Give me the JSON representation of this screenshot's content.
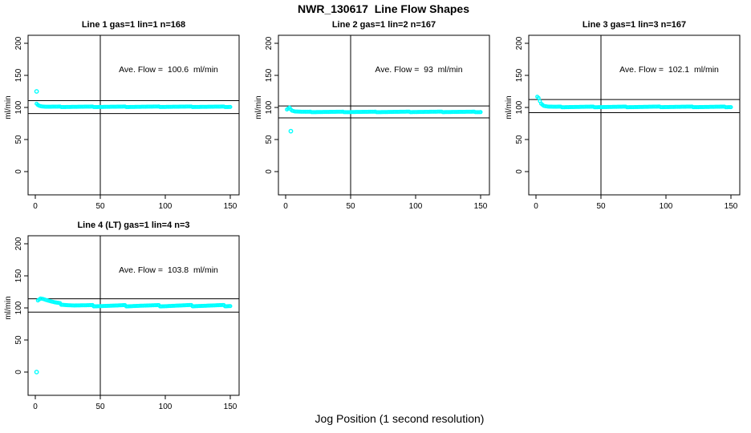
{
  "title": "NWR_130617  Line Flow Shapes",
  "xlabel": "Jog Position (1 second resolution)",
  "colors": {
    "data_marker": "#00FFFF",
    "axis": "#000000",
    "background": "#FFFFFF"
  },
  "chart_data": [
    {
      "type": "scatter",
      "title": "Line 1 gas=1 lin=1 n=168",
      "annotation": "Ave. Flow =  100.6  ml/min",
      "ave_flow_ml_min": 100.6,
      "ylabel": "ml/min",
      "xlim": [
        0,
        150
      ],
      "ylim": [
        0,
        200
      ],
      "xticks": [
        0,
        50,
        100,
        150
      ],
      "yticks": [
        0,
        50,
        100,
        150,
        200
      ],
      "ref_lines_y": [
        110.7,
        90.5
      ],
      "ref_line_x": 50,
      "marker": "open-circle",
      "jitter": 0.4,
      "outliers": [
        [
          1,
          125
        ]
      ],
      "curve_points": [
        [
          1,
          106
        ],
        [
          2,
          104
        ],
        [
          3,
          102.8
        ],
        [
          5,
          101.6
        ],
        [
          8,
          101.1
        ],
        [
          12,
          101
        ],
        [
          60,
          101
        ],
        [
          100,
          101.1
        ],
        [
          150,
          101
        ]
      ]
    },
    {
      "type": "scatter",
      "title": "Line 2 gas=1 lin=2 n=167",
      "annotation": "Ave. Flow =  93  ml/min",
      "ave_flow_ml_min": 93,
      "ylabel": "ml/min",
      "xlim": [
        0,
        150
      ],
      "ylim": [
        0,
        200
      ],
      "xticks": [
        0,
        50,
        100,
        150
      ],
      "yticks": [
        0,
        50,
        100,
        150,
        200
      ],
      "ref_lines_y": [
        102.3,
        83.7
      ],
      "ref_line_x": 50,
      "marker": "open-circle",
      "jitter": 0.4,
      "outliers": [
        [
          4,
          63
        ]
      ],
      "curve_points": [
        [
          1,
          97
        ],
        [
          3,
          100
        ],
        [
          4,
          97
        ],
        [
          5,
          95
        ],
        [
          7,
          93.8
        ],
        [
          10,
          93.3
        ],
        [
          15,
          93
        ],
        [
          70,
          93
        ],
        [
          110,
          93.1
        ],
        [
          150,
          93
        ]
      ]
    },
    {
      "type": "scatter",
      "title": "Line 3 gas=1 lin=3 n=167",
      "annotation": "Ave. Flow =  102.1  ml/min",
      "ave_flow_ml_min": 102.1,
      "ylabel": "ml/min",
      "xlim": [
        0,
        150
      ],
      "ylim": [
        0,
        200
      ],
      "xticks": [
        0,
        50,
        100,
        150
      ],
      "yticks": [
        0,
        50,
        100,
        150,
        200
      ],
      "ref_lines_y": [
        112.3,
        91.9
      ],
      "ref_line_x": 50,
      "marker": "open-circle",
      "jitter": 0.5,
      "outliers": [],
      "curve_points": [
        [
          1,
          117
        ],
        [
          2,
          115
        ],
        [
          3,
          110
        ],
        [
          4,
          106
        ],
        [
          6,
          102.5
        ],
        [
          9,
          101.3
        ],
        [
          14,
          100.8
        ],
        [
          60,
          100.8
        ],
        [
          100,
          100.9
        ],
        [
          150,
          100.8
        ]
      ]
    },
    {
      "type": "scatter",
      "title": "Line 4 (LT) gas=1 lin=4 n=3",
      "annotation": "Ave. Flow =  103.8  ml/min",
      "ave_flow_ml_min": 103.8,
      "ylabel": "ml/min",
      "xlim": [
        0,
        150
      ],
      "ylim": [
        0,
        200
      ],
      "xticks": [
        0,
        50,
        100,
        150
      ],
      "yticks": [
        0,
        50,
        100,
        150,
        200
      ],
      "ref_lines_y": [
        114.2,
        93.4
      ],
      "ref_line_x": 50,
      "marker": "open-circle",
      "jitter": 1.1,
      "outliers": [
        [
          1,
          0
        ]
      ],
      "curve_points": [
        [
          2,
          112
        ],
        [
          4,
          115
        ],
        [
          6,
          114
        ],
        [
          10,
          111
        ],
        [
          15,
          108
        ],
        [
          20,
          106
        ],
        [
          25,
          104.8
        ],
        [
          30,
          104
        ],
        [
          40,
          103.5
        ],
        [
          60,
          103.3
        ],
        [
          80,
          103.5
        ],
        [
          100,
          103.3
        ],
        [
          120,
          103.5
        ],
        [
          150,
          103.5
        ]
      ]
    }
  ]
}
